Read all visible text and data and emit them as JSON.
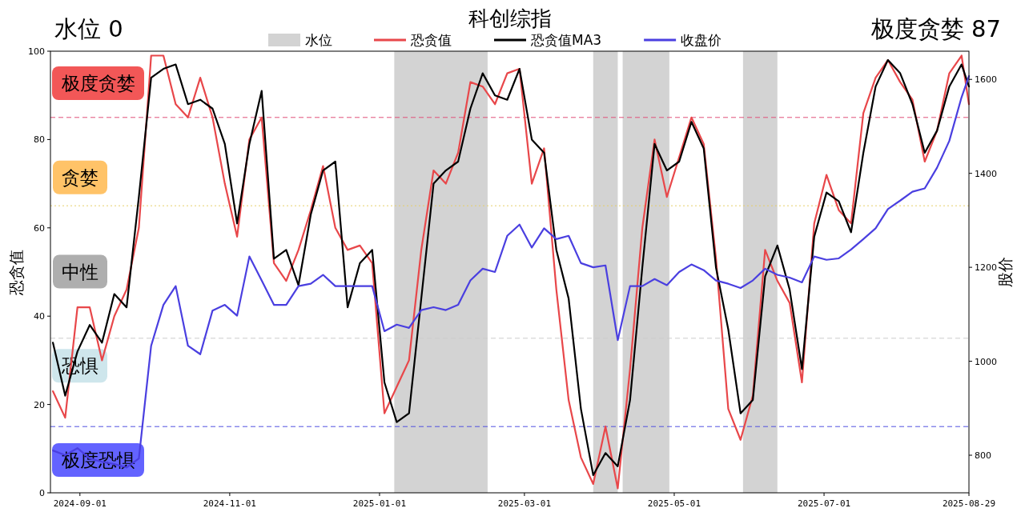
{
  "chart_data": {
    "type": "line",
    "title": "科创综指",
    "ylabel": "恐贪值",
    "y2label": "股价",
    "annotations": [
      "水位 0",
      "极度贪婪 87",
      "极度贪婪",
      "贪婪",
      "中性",
      "恐惧",
      "极度恐惧"
    ],
    "x": [
      "2024-08-21",
      "2024-08-26",
      "2024-08-31",
      "2024-09-05",
      "2024-09-10",
      "2024-09-15",
      "2024-09-20",
      "2024-09-25",
      "2024-09-30",
      "2024-10-05",
      "2024-10-10",
      "2024-10-15",
      "2024-10-20",
      "2024-10-25",
      "2024-10-30",
      "2024-11-04",
      "2024-11-09",
      "2024-11-14",
      "2024-11-19",
      "2024-11-24",
      "2024-11-29",
      "2024-12-04",
      "2024-12-09",
      "2024-12-14",
      "2024-12-19",
      "2024-12-24",
      "2024-12-29",
      "2025-01-03",
      "2025-01-08",
      "2025-01-13",
      "2025-01-18",
      "2025-01-23",
      "2025-01-28",
      "2025-02-02",
      "2025-02-07",
      "2025-02-12",
      "2025-02-17",
      "2025-02-22",
      "2025-02-27",
      "2025-03-04",
      "2025-03-09",
      "2025-03-14",
      "2025-03-19",
      "2025-03-24",
      "2025-03-29",
      "2025-04-03",
      "2025-04-08",
      "2025-04-13",
      "2025-04-18",
      "2025-04-23",
      "2025-04-28",
      "2025-05-03",
      "2025-05-08",
      "2025-05-13",
      "2025-05-18",
      "2025-05-23",
      "2025-05-28",
      "2025-06-02",
      "2025-06-07",
      "2025-06-12",
      "2025-06-17",
      "2025-06-22",
      "2025-06-27",
      "2025-07-02",
      "2025-07-07",
      "2025-07-12",
      "2025-07-17",
      "2025-07-22",
      "2025-07-27",
      "2025-08-01",
      "2025-08-06",
      "2025-08-11",
      "2025-08-16",
      "2025-08-21",
      "2025-08-26",
      "2025-08-29"
    ],
    "series": [
      {
        "name": "恐贪值",
        "color": "#e8474a",
        "values": [
          23,
          17,
          42,
          42,
          30,
          40,
          46,
          60,
          99,
          99,
          88,
          85,
          94,
          85,
          70,
          58,
          80,
          85,
          52,
          48,
          55,
          64,
          74,
          60,
          55,
          56,
          52,
          18,
          24,
          30,
          55,
          73,
          70,
          77,
          93,
          92,
          88,
          95,
          96,
          70,
          78,
          46,
          21,
          8,
          2,
          15,
          1,
          28,
          60,
          80,
          67,
          76,
          85,
          79,
          53,
          19,
          12,
          22,
          55,
          48,
          43,
          25,
          61,
          72,
          64,
          61,
          86,
          94,
          98,
          93,
          89,
          75,
          82,
          95,
          99,
          88
        ]
      },
      {
        "name": "恐贪值MA3",
        "color": "#000000",
        "values": [
          34,
          22,
          32,
          38,
          34,
          45,
          42,
          67,
          94,
          96,
          97,
          88,
          89,
          87,
          79,
          61,
          79,
          91,
          53,
          55,
          47,
          63,
          73,
          75,
          42,
          52,
          55,
          25,
          16,
          18,
          44,
          70,
          73,
          75,
          87,
          95,
          90,
          89,
          96,
          80,
          77,
          55,
          44,
          19,
          4,
          9,
          6,
          21,
          51,
          79,
          73,
          75,
          84,
          78,
          51,
          37,
          18,
          21,
          49,
          56,
          46,
          28,
          58,
          68,
          66,
          59,
          77,
          92,
          98,
          95,
          88,
          77,
          82,
          92,
          97,
          92
        ]
      },
      {
        "name": "收盘价",
        "color": "#4a3fe0",
        "axis": "y2",
        "values": [
          810,
          800,
          815,
          793,
          786,
          781,
          774,
          793,
          1033,
          1120,
          1160,
          1033,
          1015,
          1108,
          1120,
          1097,
          1223,
          1172,
          1120,
          1120,
          1160,
          1165,
          1184,
          1160,
          1160,
          1160,
          1160,
          1064,
          1078,
          1071,
          1109,
          1115,
          1109,
          1120,
          1172,
          1197,
          1190,
          1267,
          1291,
          1242,
          1283,
          1260,
          1267,
          1209,
          1200,
          1204,
          1045,
          1160,
          1160,
          1175,
          1162,
          1190,
          1206,
          1194,
          1172,
          1165,
          1156,
          1172,
          1197,
          1184,
          1178,
          1168,
          1223,
          1216,
          1219,
          1238,
          1260,
          1283,
          1324,
          1342,
          1361,
          1368,
          1412,
          1469,
          1562,
          1607
        ]
      }
    ],
    "bands": [
      {
        "axis": "x",
        "from": "2025-01-07",
        "to": "2025-02-14",
        "label": "水位",
        "color": "#d3d3d3"
      },
      {
        "axis": "x",
        "from": "2025-03-29",
        "to": "2025-04-08",
        "color": "#d3d3d3"
      },
      {
        "axis": "x",
        "from": "2025-04-10",
        "to": "2025-04-29",
        "color": "#d3d3d3"
      },
      {
        "axis": "x",
        "from": "2025-05-29",
        "to": "2025-06-12",
        "color": "#d3d3d3"
      }
    ],
    "ref_lines": [
      {
        "axis": "y",
        "value": 85,
        "color": "#e0507a",
        "line_style": "dashed"
      },
      {
        "axis": "y",
        "value": 65,
        "color": "#e6cf6a",
        "line_style": "dotted"
      },
      {
        "axis": "y",
        "value": 35,
        "color": "#cccccc",
        "line_style": "dashed"
      },
      {
        "axis": "y",
        "value": 15,
        "color": "#5050e0",
        "line_style": "dashed"
      }
    ],
    "xlim": [
      "2024-08-20",
      "2025-08-29"
    ],
    "xticks": [
      "2024-09-01",
      "2024-11-01",
      "2025-01-01",
      "2025-03-01",
      "2025-05-01",
      "2025-07-01",
      "2025-08-29"
    ],
    "ylim": [
      0,
      100
    ],
    "yticks": [
      0,
      20,
      40,
      60,
      80,
      100
    ],
    "y2lim": [
      720,
      1660
    ],
    "y2ticks": [
      800,
      1000,
      1200,
      1400,
      1600
    ],
    "legend": "top",
    "grid": false,
    "marker": "none",
    "line_style": "solid"
  }
}
